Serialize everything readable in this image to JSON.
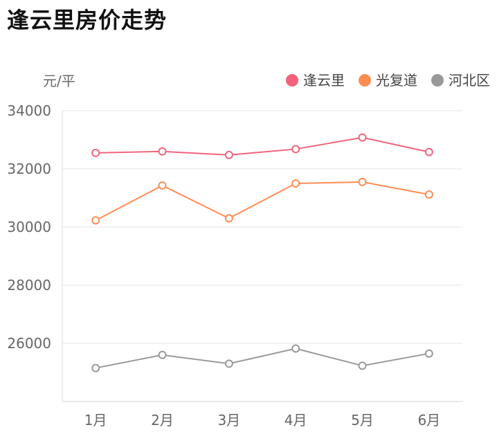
{
  "chart_data": {
    "type": "line",
    "title": "逢云里房价走势",
    "ylabel": "元/平",
    "categories": [
      "1月",
      "2月",
      "3月",
      "4月",
      "5月",
      "6月"
    ],
    "ylim": [
      24000,
      34000
    ],
    "yticks": [
      26000,
      28000,
      30000,
      32000,
      34000
    ],
    "grid": true,
    "legend_position": "top-right",
    "series": [
      {
        "name": "逢云里",
        "color": "#f2637b",
        "values": [
          32550,
          32600,
          32480,
          32680,
          33080,
          32580
        ]
      },
      {
        "name": "光复道",
        "color": "#ff8c52",
        "values": [
          30230,
          31430,
          30300,
          31500,
          31550,
          31120
        ]
      },
      {
        "name": "河北区",
        "color": "#999999",
        "values": [
          25150,
          25600,
          25300,
          25820,
          25230,
          25650
        ]
      }
    ]
  }
}
